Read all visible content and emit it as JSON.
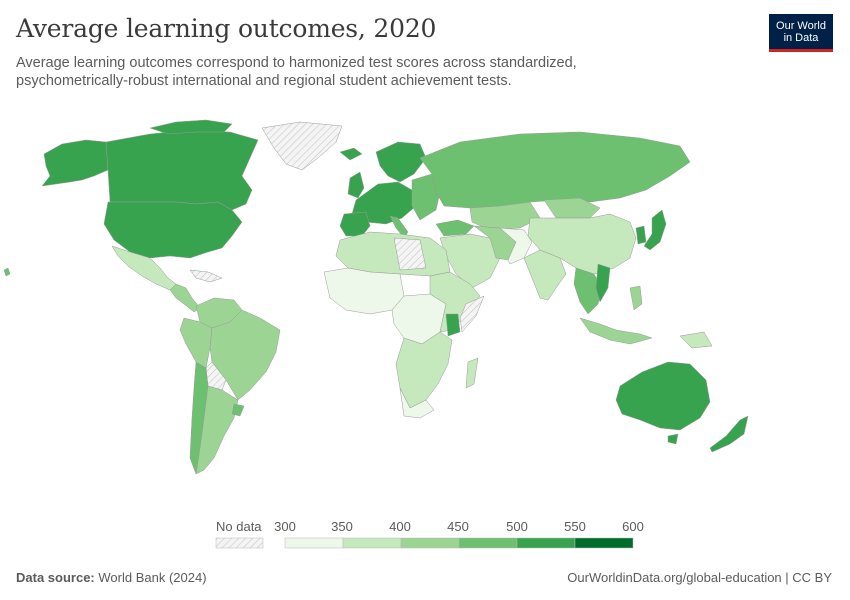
{
  "header": {
    "title": "Average learning outcomes, 2020",
    "subtitle": "Average learning outcomes correspond to harmonized test scores across standardized, psychometrically-robust international and regional student achievement tests."
  },
  "logo": {
    "line1": "Our World",
    "line2": "in Data"
  },
  "legend": {
    "no_data_label": "No data",
    "ticks": [
      "300",
      "350",
      "400",
      "450",
      "500",
      "550",
      "600"
    ],
    "bins": [
      {
        "min": 300,
        "max": 350,
        "color": "#eef8ea"
      },
      {
        "min": 350,
        "max": 400,
        "color": "#c5e8bd"
      },
      {
        "min": 400,
        "max": 450,
        "color": "#9cd494"
      },
      {
        "min": 450,
        "max": 500,
        "color": "#6cc070"
      },
      {
        "min": 500,
        "max": 550,
        "color": "#38a34f"
      },
      {
        "min": 550,
        "max": 600,
        "color": "#006d2c"
      }
    ]
  },
  "footer": {
    "source_label": "Data source:",
    "source_value": "World Bank (2024)",
    "url": "OurWorldinData.org/global-education | CC BY"
  },
  "colors": {
    "no_data": "#f2f2f2",
    "border": "#b0b0b0",
    "logo_bg": "#002147",
    "logo_accent": "#ce261e"
  }
}
